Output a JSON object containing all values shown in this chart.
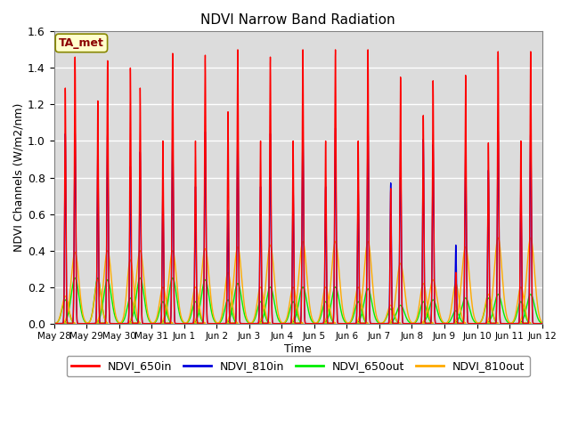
{
  "title": "NDVI Narrow Band Radiation",
  "xlabel": "Time",
  "ylabel": "NDVI Channels (W/m2/nm)",
  "ylim": [
    0.0,
    1.6
  ],
  "annotation": "TA_met",
  "background_color": "#dcdcdc",
  "lines": {
    "NDVI_650in": {
      "color": "#ff0000"
    },
    "NDVI_810in": {
      "color": "#0000dd"
    },
    "NDVI_650out": {
      "color": "#00ee00"
    },
    "NDVI_810out": {
      "color": "#ffaa00"
    }
  },
  "x_tick_labels": [
    "May 28",
    "May 29",
    "May 30",
    "May 31",
    "Jun 1",
    "Jun 2",
    "Jun 3",
    "Jun 4",
    "Jun 5",
    "Jun 6",
    "Jun 7",
    "Jun 8",
    "Jun 9",
    "Jun 10",
    "Jun 11",
    "Jun 12"
  ],
  "num_days": 15,
  "peak1_650in": [
    1.46,
    1.44,
    1.29,
    1.48,
    1.47,
    1.5,
    1.46,
    1.5,
    1.5,
    1.5,
    1.35,
    1.33,
    1.36,
    1.49,
    1.49
  ],
  "peak2_650in": [
    1.29,
    1.22,
    1.4,
    1.0,
    1.0,
    1.16,
    1.0,
    1.0,
    1.0,
    1.0,
    0.74,
    1.14,
    0.28,
    0.99,
    1.0
  ],
  "peak1_810in": [
    1.05,
    1.05,
    0.94,
    1.05,
    1.05,
    1.06,
    1.04,
    1.07,
    1.07,
    1.08,
    1.0,
    0.98,
    0.96,
    1.06,
    1.06
  ],
  "peak2_810in": [
    1.04,
    0.94,
    0.86,
    0.75,
    0.75,
    0.62,
    0.75,
    0.75,
    0.75,
    0.75,
    0.77,
    1.01,
    0.43,
    0.84,
    0.75
  ],
  "peak1_650out": [
    0.25,
    0.24,
    0.25,
    0.25,
    0.24,
    0.22,
    0.2,
    0.2,
    0.2,
    0.19,
    0.1,
    0.13,
    0.14,
    0.16,
    0.16
  ],
  "peak2_650out": [
    0.13,
    0.25,
    0.14,
    0.12,
    0.12,
    0.13,
    0.12,
    0.12,
    0.12,
    0.12,
    0.08,
    0.12,
    0.07,
    0.14,
    0.12
  ],
  "peak1_810out": [
    0.39,
    0.4,
    0.4,
    0.4,
    0.41,
    0.42,
    0.43,
    0.45,
    0.45,
    0.45,
    0.33,
    0.24,
    0.42,
    0.47,
    0.47
  ],
  "peak2_810out": [
    0.15,
    0.24,
    0.35,
    0.2,
    0.2,
    0.28,
    0.2,
    0.2,
    0.2,
    0.2,
    0.1,
    0.22,
    0.22,
    0.16,
    0.2
  ],
  "figsize": [
    6.4,
    4.8
  ],
  "dpi": 100
}
